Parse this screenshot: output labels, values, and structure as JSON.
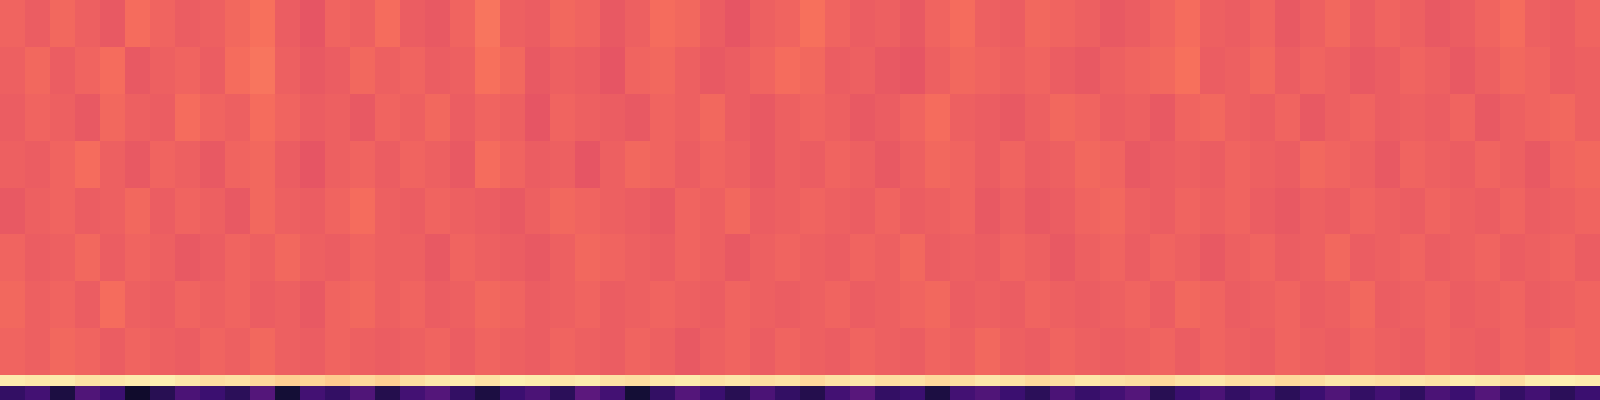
{
  "chart_data": {
    "type": "heatmap",
    "tick_labels": false,
    "xlim": [
      0,
      64
    ],
    "ylim": [
      0,
      8.53
    ],
    "zlim": [
      0,
      1
    ],
    "y_edges": [
      0,
      1,
      2,
      3,
      4,
      5,
      6,
      7,
      8,
      8.23,
      8.53
    ],
    "cells": [
      [
        0.67,
        0.65,
        0.68,
        0.66,
        0.64,
        0.69,
        0.67,
        0.65,
        0.66,
        0.68,
        0.7,
        0.65,
        0.63,
        0.67,
        0.66,
        0.69,
        0.65,
        0.64,
        0.67,
        0.71,
        0.66,
        0.65,
        0.68,
        0.67,
        0.64,
        0.66,
        0.69,
        0.68,
        0.65,
        0.63,
        0.66,
        0.67,
        0.7,
        0.67,
        0.65,
        0.66,
        0.64,
        0.67,
        0.69,
        0.66,
        0.65,
        0.68,
        0.67,
        0.66,
        0.64,
        0.65,
        0.67,
        0.69,
        0.66,
        0.65,
        0.67,
        0.64,
        0.66,
        0.68,
        0.65,
        0.67,
        0.66,
        0.64,
        0.65,
        0.67,
        0.69,
        0.66,
        0.65,
        0.67
      ],
      [
        0.66,
        0.68,
        0.65,
        0.67,
        0.69,
        0.64,
        0.66,
        0.67,
        0.65,
        0.69,
        0.71,
        0.66,
        0.64,
        0.65,
        0.68,
        0.66,
        0.67,
        0.65,
        0.66,
        0.7,
        0.68,
        0.64,
        0.66,
        0.65,
        0.63,
        0.67,
        0.68,
        0.66,
        0.64,
        0.65,
        0.67,
        0.69,
        0.68,
        0.65,
        0.66,
        0.64,
        0.63,
        0.66,
        0.68,
        0.67,
        0.66,
        0.67,
        0.65,
        0.64,
        0.66,
        0.67,
        0.68,
        0.7,
        0.65,
        0.66,
        0.68,
        0.65,
        0.67,
        0.66,
        0.64,
        0.65,
        0.67,
        0.66,
        0.64,
        0.66,
        0.68,
        0.67,
        0.65,
        0.66
      ],
      [
        0.65,
        0.67,
        0.66,
        0.64,
        0.68,
        0.66,
        0.65,
        0.69,
        0.67,
        0.66,
        0.69,
        0.67,
        0.65,
        0.66,
        0.64,
        0.67,
        0.66,
        0.68,
        0.65,
        0.67,
        0.66,
        0.63,
        0.67,
        0.66,
        0.65,
        0.64,
        0.67,
        0.66,
        0.68,
        0.65,
        0.64,
        0.66,
        0.67,
        0.66,
        0.64,
        0.65,
        0.67,
        0.69,
        0.66,
        0.65,
        0.64,
        0.66,
        0.68,
        0.67,
        0.65,
        0.66,
        0.64,
        0.67,
        0.68,
        0.66,
        0.65,
        0.67,
        0.64,
        0.66,
        0.67,
        0.65,
        0.66,
        0.65,
        0.67,
        0.64,
        0.66,
        0.67,
        0.68,
        0.66
      ],
      [
        0.66,
        0.65,
        0.67,
        0.69,
        0.66,
        0.64,
        0.67,
        0.66,
        0.64,
        0.67,
        0.68,
        0.65,
        0.63,
        0.66,
        0.67,
        0.65,
        0.67,
        0.66,
        0.64,
        0.69,
        0.67,
        0.65,
        0.66,
        0.63,
        0.66,
        0.68,
        0.67,
        0.65,
        0.67,
        0.66,
        0.64,
        0.66,
        0.65,
        0.67,
        0.66,
        0.64,
        0.66,
        0.68,
        0.67,
        0.65,
        0.67,
        0.65,
        0.66,
        0.68,
        0.67,
        0.64,
        0.65,
        0.66,
        0.65,
        0.67,
        0.66,
        0.65,
        0.68,
        0.67,
        0.66,
        0.64,
        0.67,
        0.66,
        0.65,
        0.67,
        0.66,
        0.64,
        0.67,
        0.68
      ],
      [
        0.64,
        0.66,
        0.67,
        0.65,
        0.66,
        0.68,
        0.65,
        0.67,
        0.66,
        0.64,
        0.68,
        0.66,
        0.65,
        0.67,
        0.69,
        0.66,
        0.65,
        0.67,
        0.66,
        0.65,
        0.64,
        0.66,
        0.68,
        0.67,
        0.66,
        0.65,
        0.64,
        0.67,
        0.66,
        0.68,
        0.65,
        0.66,
        0.67,
        0.66,
        0.65,
        0.67,
        0.65,
        0.66,
        0.67,
        0.64,
        0.66,
        0.64,
        0.65,
        0.67,
        0.68,
        0.66,
        0.65,
        0.67,
        0.66,
        0.67,
        0.65,
        0.64,
        0.66,
        0.65,
        0.67,
        0.66,
        0.65,
        0.67,
        0.66,
        0.65,
        0.67,
        0.65,
        0.66,
        0.67
      ],
      [
        0.67,
        0.65,
        0.66,
        0.68,
        0.65,
        0.67,
        0.66,
        0.64,
        0.65,
        0.67,
        0.66,
        0.68,
        0.66,
        0.65,
        0.67,
        0.66,
        0.66,
        0.64,
        0.67,
        0.66,
        0.65,
        0.64,
        0.66,
        0.68,
        0.67,
        0.66,
        0.65,
        0.67,
        0.66,
        0.64,
        0.66,
        0.67,
        0.66,
        0.65,
        0.67,
        0.66,
        0.68,
        0.65,
        0.66,
        0.65,
        0.67,
        0.66,
        0.64,
        0.66,
        0.67,
        0.65,
        0.67,
        0.66,
        0.64,
        0.66,
        0.67,
        0.65,
        0.66,
        0.68,
        0.65,
        0.66,
        0.67,
        0.65,
        0.66,
        0.67,
        0.65,
        0.66,
        0.67,
        0.65
      ],
      [
        0.68,
        0.66,
        0.67,
        0.65,
        0.69,
        0.66,
        0.65,
        0.67,
        0.66,
        0.67,
        0.65,
        0.66,
        0.64,
        0.67,
        0.68,
        0.66,
        0.67,
        0.65,
        0.66,
        0.68,
        0.67,
        0.65,
        0.66,
        0.67,
        0.65,
        0.66,
        0.67,
        0.66,
        0.65,
        0.67,
        0.66,
        0.65,
        0.66,
        0.67,
        0.65,
        0.66,
        0.67,
        0.68,
        0.65,
        0.66,
        0.65,
        0.67,
        0.66,
        0.65,
        0.66,
        0.67,
        0.65,
        0.68,
        0.67,
        0.65,
        0.66,
        0.67,
        0.65,
        0.66,
        0.68,
        0.65,
        0.66,
        0.67,
        0.65,
        0.66,
        0.67,
        0.65,
        0.66,
        0.67
      ],
      [
        0.67,
        0.66,
        0.68,
        0.67,
        0.65,
        0.67,
        0.66,
        0.65,
        0.67,
        0.66,
        0.68,
        0.66,
        0.65,
        0.67,
        0.66,
        0.65,
        0.66,
        0.67,
        0.65,
        0.67,
        0.66,
        0.65,
        0.67,
        0.66,
        0.65,
        0.67,
        0.66,
        0.64,
        0.66,
        0.67,
        0.65,
        0.67,
        0.66,
        0.65,
        0.67,
        0.66,
        0.65,
        0.67,
        0.66,
        0.68,
        0.66,
        0.65,
        0.67,
        0.66,
        0.65,
        0.66,
        0.67,
        0.65,
        0.67,
        0.66,
        0.65,
        0.67,
        0.66,
        0.65,
        0.67,
        0.66,
        0.65,
        0.67,
        0.66,
        0.65,
        0.67,
        0.66,
        0.68,
        0.67
      ],
      [
        0.96,
        0.95,
        0.96,
        0.94,
        0.95,
        0.96,
        0.97,
        0.95,
        0.93,
        0.94,
        0.92,
        0.9,
        0.91,
        0.89,
        0.92,
        0.9,
        0.93,
        0.95,
        0.96,
        0.94,
        0.97,
        0.96,
        0.95,
        0.96,
        0.94,
        0.93,
        0.95,
        0.96,
        0.94,
        0.95,
        0.93,
        0.94,
        0.92,
        0.94,
        0.95,
        0.93,
        0.94,
        0.92,
        0.93,
        0.95,
        0.94,
        0.92,
        0.93,
        0.95,
        0.94,
        0.93,
        0.92,
        0.94,
        0.95,
        0.93,
        0.94,
        0.92,
        0.93,
        0.95,
        0.94,
        0.93,
        0.95,
        0.94,
        0.96,
        0.95,
        0.93,
        0.96,
        0.97,
        0.96
      ],
      [
        0.18,
        0.22,
        0.12,
        0.25,
        0.2,
        0.08,
        0.15,
        0.24,
        0.2,
        0.16,
        0.26,
        0.1,
        0.22,
        0.18,
        0.25,
        0.14,
        0.22,
        0.26,
        0.18,
        0.12,
        0.2,
        0.24,
        0.16,
        0.28,
        0.22,
        0.1,
        0.18,
        0.26,
        0.2,
        0.15,
        0.24,
        0.18,
        0.14,
        0.22,
        0.27,
        0.18,
        0.2,
        0.12,
        0.22,
        0.25,
        0.2,
        0.16,
        0.24,
        0.19,
        0.22,
        0.26,
        0.15,
        0.2,
        0.24,
        0.18,
        0.22,
        0.16,
        0.2,
        0.25,
        0.18,
        0.22,
        0.17,
        0.24,
        0.2,
        0.26,
        0.18,
        0.22,
        0.16,
        0.2
      ]
    ]
  }
}
